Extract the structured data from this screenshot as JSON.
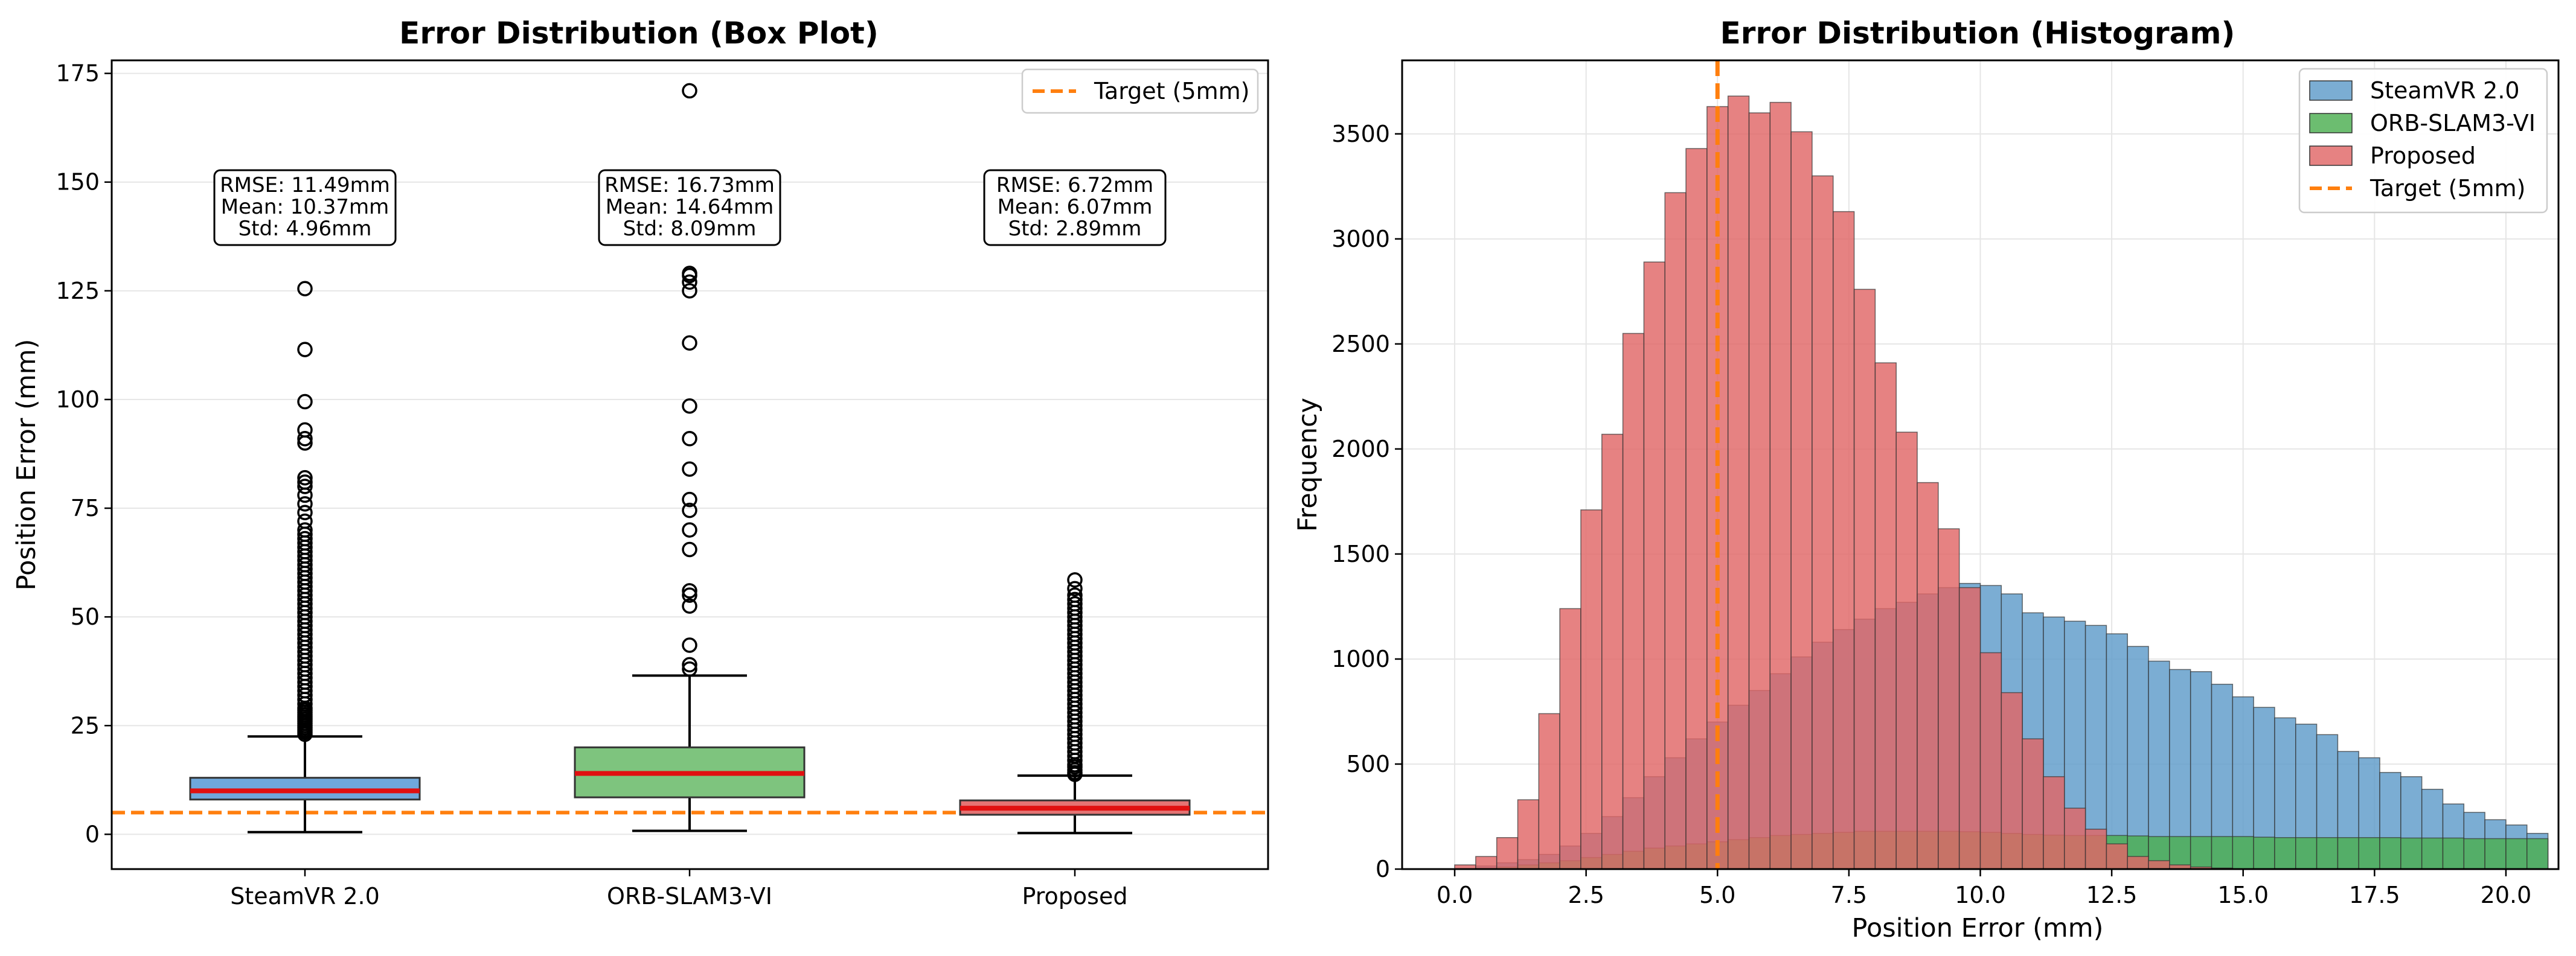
{
  "chart_data": [
    {
      "type": "box",
      "title": "Error Distribution (Box Plot)",
      "xlabel": "",
      "ylabel": "Position Error (mm)",
      "ylim": [
        -8,
        178
      ],
      "yticks": [
        0,
        25,
        50,
        75,
        100,
        125,
        150,
        175
      ],
      "target": 5,
      "legend": {
        "position": "top-right",
        "entries": [
          "Target (5mm)"
        ]
      },
      "boxes": [
        {
          "name": "SteamVR 2.0",
          "color": "#6fa8dc",
          "q1": 8.0,
          "median": 10.0,
          "q3": 13.0,
          "whisker_low": 0.5,
          "whisker_high": 22.5,
          "outliers": [
            23,
            23.5,
            24,
            24.5,
            25,
            25.5,
            26,
            26.5,
            27,
            27.5,
            28,
            28.5,
            29,
            30,
            31,
            32,
            33,
            34,
            35,
            36,
            37,
            38,
            39,
            40,
            41,
            42,
            43,
            44,
            45,
            46,
            47,
            48,
            49,
            50,
            51,
            52,
            53,
            54,
            55,
            56,
            57,
            58,
            59,
            60,
            61,
            62,
            63,
            64,
            65,
            66,
            67,
            68,
            69,
            70,
            72,
            74,
            76,
            78,
            80,
            81,
            82,
            90,
            91,
            93,
            99.5,
            111.5,
            125.5
          ],
          "stats": [
            "RMSE: 11.49mm",
            "Mean: 10.37mm",
            "Std: 4.96mm"
          ]
        },
        {
          "name": "ORB-SLAM3-VI",
          "color": "#7ec47e",
          "q1": 8.5,
          "median": 14.0,
          "q3": 20.0,
          "whisker_low": 0.8,
          "whisker_high": 36.5,
          "outliers": [
            38,
            39,
            43.5,
            52.5,
            55,
            56,
            65.5,
            70,
            74.5,
            77,
            84,
            91,
            98.5,
            113,
            125,
            127,
            128.5,
            129,
            171
          ],
          "stats": [
            "RMSE: 16.73mm",
            "Mean: 14.64mm",
            "Std: 8.09mm"
          ]
        },
        {
          "name": "Proposed",
          "color": "#e57373",
          "q1": 4.5,
          "median": 6.0,
          "q3": 7.8,
          "whisker_low": 0.3,
          "whisker_high": 13.5,
          "outliers": [
            13.8,
            14.2,
            14.8,
            15.5,
            16,
            17,
            18,
            19,
            20,
            21,
            22,
            23,
            24,
            25,
            26,
            27,
            28,
            29,
            30,
            31,
            32,
            33,
            34,
            35,
            36,
            37,
            38,
            39,
            40,
            41,
            42,
            43,
            44,
            45,
            46,
            47,
            48,
            49,
            50,
            51,
            52,
            53,
            54,
            55,
            56.5,
            58.5
          ],
          "stats": [
            "RMSE: 6.72mm",
            "Mean: 6.07mm",
            "Std: 2.89mm"
          ]
        }
      ]
    },
    {
      "type": "histogram",
      "title": "Error Distribution (Histogram)",
      "xlabel": "Position Error (mm)",
      "ylabel": "Frequency",
      "xlim": [
        -1,
        21
      ],
      "ylim": [
        0,
        3850
      ],
      "xticks": [
        "0.0",
        "2.5",
        "5.0",
        "7.5",
        "10.0",
        "12.5",
        "15.0",
        "17.5",
        "20.0"
      ],
      "yticks": [
        0,
        500,
        1000,
        1500,
        2000,
        2500,
        3000,
        3500
      ],
      "bin_start": 0,
      "bin_width": 0.4,
      "target": 5,
      "legend": {
        "position": "top-right",
        "entries": [
          "SteamVR 2.0",
          "ORB-SLAM3-VI",
          "Proposed",
          "Target (5mm)"
        ]
      },
      "series": [
        {
          "name": "SteamVR 2.0",
          "color": "#5e9bc9",
          "values": [
            0,
            15,
            30,
            45,
            70,
            110,
            170,
            250,
            340,
            440,
            530,
            620,
            700,
            780,
            850,
            930,
            1010,
            1080,
            1140,
            1190,
            1240,
            1270,
            1310,
            1340,
            1360,
            1350,
            1310,
            1220,
            1200,
            1180,
            1160,
            1120,
            1060,
            990,
            950,
            940,
            880,
            820,
            770,
            720,
            690,
            640,
            560,
            530,
            460,
            440,
            380,
            310,
            270,
            235,
            210,
            170
          ]
        },
        {
          "name": "ORB-SLAM3-VI",
          "color": "#4caf50",
          "values": [
            0,
            5,
            10,
            20,
            30,
            40,
            55,
            70,
            85,
            100,
            110,
            120,
            130,
            140,
            150,
            160,
            165,
            170,
            175,
            180,
            180,
            180,
            180,
            180,
            178,
            175,
            170,
            165,
            162,
            160,
            160,
            160,
            158,
            155,
            155,
            155,
            155,
            155,
            152,
            150,
            150,
            150,
            150,
            150,
            150,
            148,
            148,
            148,
            145,
            145,
            145,
            145
          ]
        },
        {
          "name": "Proposed",
          "color": "#e06666",
          "values": [
            20,
            60,
            150,
            330,
            740,
            1240,
            1710,
            2070,
            2550,
            2890,
            3220,
            3430,
            3630,
            3680,
            3600,
            3650,
            3510,
            3300,
            3130,
            2760,
            2410,
            2080,
            1840,
            1620,
            1340,
            1030,
            840,
            620,
            440,
            290,
            190,
            120,
            60,
            40,
            20,
            10,
            5,
            0,
            0,
            0,
            0,
            0,
            0,
            0,
            0,
            0,
            0,
            0,
            0,
            0,
            0,
            0
          ]
        },
        {
          "name": "Target (5mm)",
          "color": "#ff7f0e"
        }
      ]
    }
  ]
}
